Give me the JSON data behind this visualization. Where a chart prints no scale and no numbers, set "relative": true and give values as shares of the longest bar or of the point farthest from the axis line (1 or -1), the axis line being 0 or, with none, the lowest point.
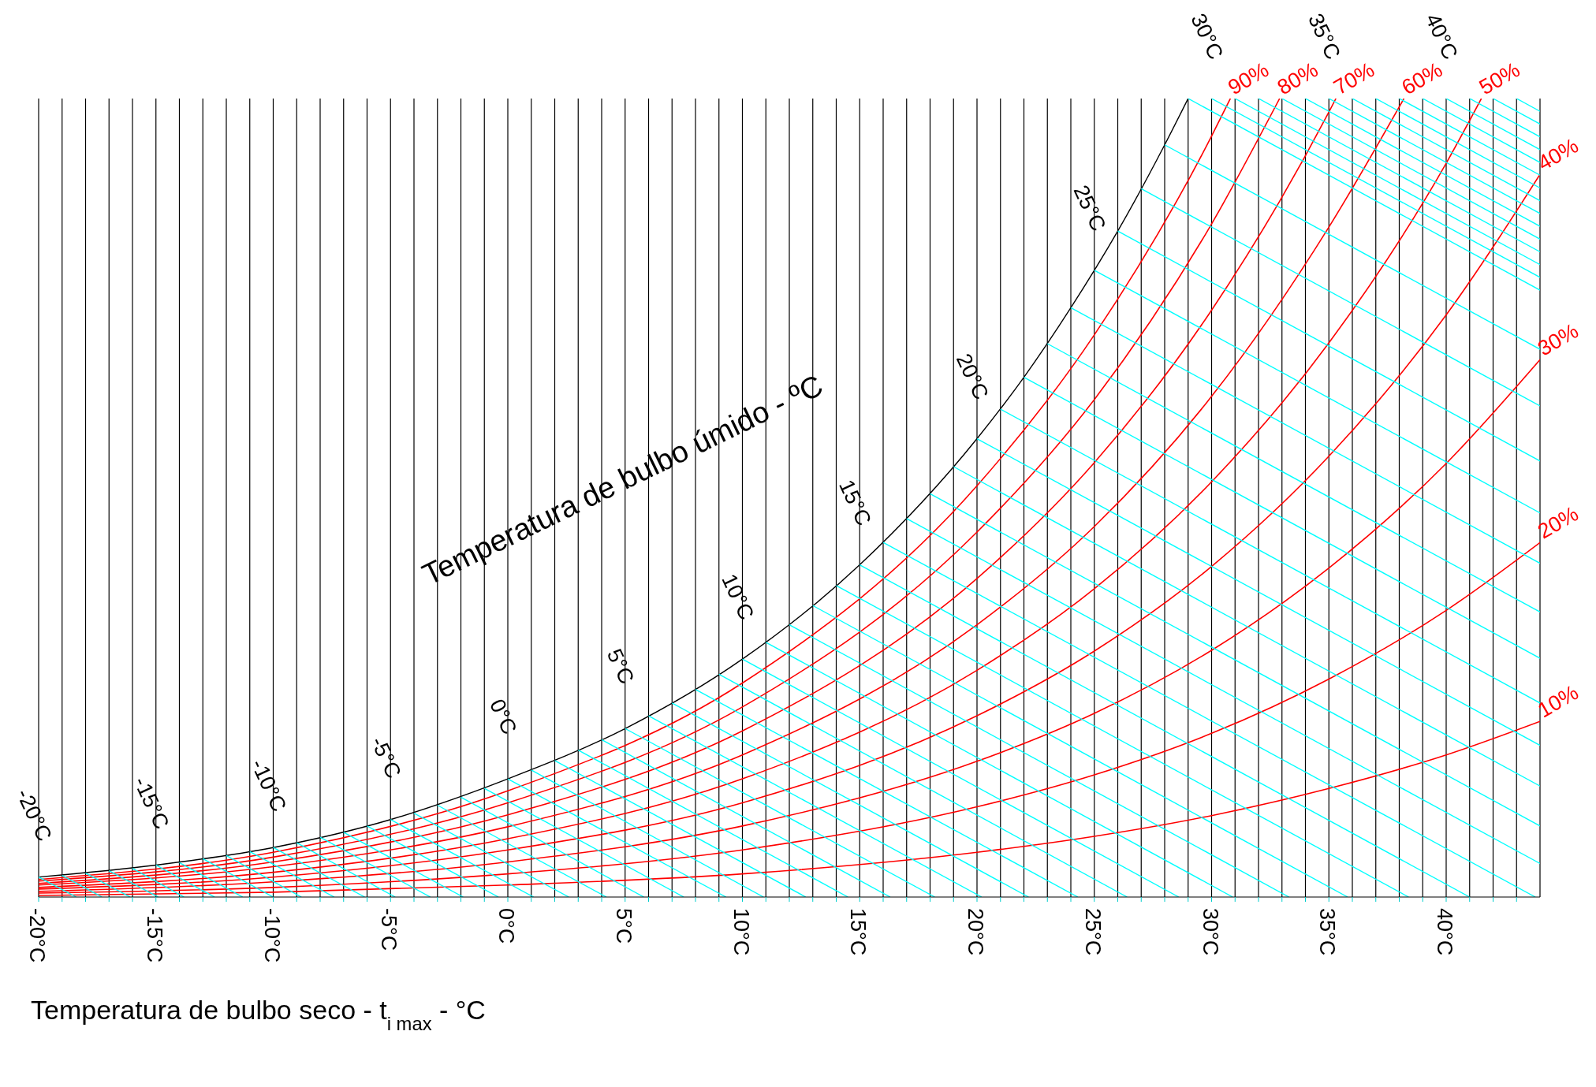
{
  "chart_data": {
    "type": "line",
    "relative": true,
    "xlabel": "Temperatura de bulbo seco - t$_{i max}$ - °C",
    "xlim": [
      -20,
      44
    ],
    "xticks": [
      {
        "value": -20,
        "label": "-20°C"
      },
      {
        "value": -19,
        "label": null
      },
      {
        "value": -18,
        "label": null
      },
      {
        "value": -17,
        "label": null
      },
      {
        "value": -16,
        "label": null
      },
      {
        "value": -15,
        "label": "-15°C"
      },
      {
        "value": -14,
        "label": null
      },
      {
        "value": -13,
        "label": null
      },
      {
        "value": -12,
        "label": null
      },
      {
        "value": -11,
        "label": null
      },
      {
        "value": -10,
        "label": "-10°C"
      },
      {
        "value": -9,
        "label": null
      },
      {
        "value": -8,
        "label": null
      },
      {
        "value": -7,
        "label": null
      },
      {
        "value": -6,
        "label": null
      },
      {
        "value": -5,
        "label": "-5°C"
      },
      {
        "value": -4,
        "label": null
      },
      {
        "value": -3,
        "label": null
      },
      {
        "value": -2,
        "label": null
      },
      {
        "value": -1,
        "label": null
      },
      {
        "value": 0,
        "label": "0°C"
      },
      {
        "value": 1,
        "label": null
      },
      {
        "value": 2,
        "label": null
      },
      {
        "value": 3,
        "label": null
      },
      {
        "value": 4,
        "label": null
      },
      {
        "value": 5,
        "label": "5°C"
      },
      {
        "value": 6,
        "label": null
      },
      {
        "value": 7,
        "label": null
      },
      {
        "value": 8,
        "label": null
      },
      {
        "value": 9,
        "label": null
      },
      {
        "value": 10,
        "label": "10°C"
      },
      {
        "value": 11,
        "label": null
      },
      {
        "value": 12,
        "label": null
      },
      {
        "value": 13,
        "label": null
      },
      {
        "value": 14,
        "label": null
      },
      {
        "value": 15,
        "label": "15°C"
      },
      {
        "value": 16,
        "label": null
      },
      {
        "value": 17,
        "label": null
      },
      {
        "value": 18,
        "label": null
      },
      {
        "value": 19,
        "label": null
      },
      {
        "value": 20,
        "label": "20°C"
      },
      {
        "value": 21,
        "label": null
      },
      {
        "value": 22,
        "label": null
      },
      {
        "value": 23,
        "label": null
      },
      {
        "value": 24,
        "label": null
      },
      {
        "value": 25,
        "label": "25°C"
      },
      {
        "value": 26,
        "label": null
      },
      {
        "value": 27,
        "label": null
      },
      {
        "value": 28,
        "label": null
      },
      {
        "value": 29,
        "label": null
      },
      {
        "value": 30,
        "label": "30°C"
      },
      {
        "value": 31,
        "label": null
      },
      {
        "value": 32,
        "label": null
      },
      {
        "value": 33,
        "label": null
      },
      {
        "value": 34,
        "label": null
      },
      {
        "value": 35,
        "label": "35°C"
      },
      {
        "value": 36,
        "label": null
      },
      {
        "value": 37,
        "label": null
      },
      {
        "value": 38,
        "label": null
      },
      {
        "value": 39,
        "label": null
      },
      {
        "value": 40,
        "label": "40°C"
      },
      {
        "value": 41,
        "label": null
      },
      {
        "value": 42,
        "label": null
      },
      {
        "value": 43,
        "label": null
      }
    ],
    "grid": "x",
    "marker": "none",
    "line_style": "solid",
    "annotations": [
      "Temperatura de bulbo úmido - ºC",
      {
        "text": "-20°C",
        "x": -20,
        "y": 0.025
      },
      {
        "text": "-15°C",
        "x": -15,
        "y": 0.04
      },
      {
        "text": "-10°C",
        "x": -10,
        "y": 0.062
      },
      {
        "text": "-5°C",
        "x": -5,
        "y": 0.097
      },
      {
        "text": "0°C",
        "x": 0,
        "y": 0.148
      },
      {
        "text": "5°C",
        "x": 5,
        "y": 0.211
      },
      {
        "text": "10°C",
        "x": 10,
        "y": 0.298
      },
      {
        "text": "15°C",
        "x": 15,
        "y": 0.416
      },
      {
        "text": "20°C",
        "x": 20,
        "y": 0.574
      },
      {
        "text": "25°C",
        "x": 25,
        "y": 0.785
      },
      {
        "text": "30°C",
        "x": 30,
        "y": 1
      },
      {
        "text": "35°C",
        "x": 35,
        "y": 1
      },
      {
        "text": "40°C",
        "x": 40,
        "y": 1
      }
    ],
    "series": [
      {
        "color": "#000000",
        "x": [
          -20,
          -15,
          -10,
          -5,
          0,
          5,
          10,
          15,
          20,
          22,
          24,
          26,
          28,
          29
        ],
        "values": [
          0.025,
          0.04,
          0.062,
          0.097,
          0.148,
          0.211,
          0.298,
          0.416,
          0.574,
          0.651,
          0.738,
          0.834,
          0.942,
          1
        ]
      },
      {
        "name": "90%",
        "color": "#ff0000",
        "x": [
          -20,
          -10,
          0,
          10,
          20,
          25,
          30,
          30.8
        ],
        "values": [
          0.022,
          0.056,
          0.133,
          0.268,
          0.515,
          0.704,
          0.953,
          1
        ]
      },
      {
        "name": "80%",
        "color": "#ff0000",
        "x": [
          -20,
          -10,
          0,
          10,
          20,
          25,
          30,
          32.9
        ],
        "values": [
          0.02,
          0.05,
          0.118,
          0.238,
          0.457,
          0.623,
          0.843,
          1
        ]
      },
      {
        "name": "70%",
        "color": "#ff0000",
        "x": [
          -20,
          -10,
          0,
          10,
          20,
          25,
          30,
          35,
          35.3
        ],
        "values": [
          0.017,
          0.044,
          0.103,
          0.208,
          0.399,
          0.544,
          0.735,
          0.983,
          1
        ]
      },
      {
        "name": "60%",
        "color": "#ff0000",
        "x": [
          -20,
          -10,
          0,
          10,
          20,
          25,
          30,
          35,
          38.2
        ],
        "values": [
          0.015,
          0.038,
          0.088,
          0.178,
          0.341,
          0.464,
          0.627,
          0.839,
          1
        ]
      },
      {
        "name": "50%",
        "color": "#ff0000",
        "x": [
          -20,
          -10,
          0,
          10,
          20,
          25,
          30,
          35,
          40,
          41.5
        ],
        "values": [
          0.012,
          0.031,
          0.073,
          0.148,
          0.284,
          0.386,
          0.52,
          0.694,
          0.919,
          1
        ]
      },
      {
        "name": "40%",
        "color": "#ff0000",
        "x": [
          -20,
          -10,
          0,
          10,
          20,
          25,
          30,
          35,
          40,
          44
        ],
        "values": [
          0.01,
          0.025,
          0.059,
          0.118,
          0.227,
          0.308,
          0.414,
          0.552,
          0.729,
          0.905
        ]
      },
      {
        "name": "30%",
        "color": "#ff0000",
        "x": [
          -20,
          -10,
          0,
          10,
          20,
          25,
          30,
          35,
          40,
          44
        ],
        "values": [
          0.007,
          0.019,
          0.044,
          0.089,
          0.17,
          0.23,
          0.309,
          0.412,
          0.543,
          0.673
        ]
      },
      {
        "name": "20%",
        "color": "#ff0000",
        "x": [
          -20,
          -10,
          0,
          10,
          20,
          25,
          30,
          35,
          40,
          44
        ],
        "values": [
          0.005,
          0.012,
          0.029,
          0.059,
          0.113,
          0.153,
          0.205,
          0.273,
          0.359,
          0.444
        ]
      },
      {
        "name": "10%",
        "color": "#ff0000",
        "x": [
          -20,
          -10,
          0,
          10,
          20,
          25,
          30,
          35,
          40,
          44
        ],
        "values": [
          0.002,
          0.006,
          0.015,
          0.029,
          0.056,
          0.076,
          0.102,
          0.136,
          0.178,
          0.22
        ]
      },
      {
        "color": "#00ffff",
        "x": [
          -20,
          -18.4
        ],
        "values": [
          0.025,
          0
        ]
      },
      {
        "color": "#00ffff",
        "x": [
          -19,
          -17.3
        ],
        "values": [
          0.027,
          0
        ]
      },
      {
        "color": "#00ffff",
        "x": [
          -18,
          -16.1
        ],
        "values": [
          0.03,
          0
        ]
      },
      {
        "color": "#00ffff",
        "x": [
          -17,
          -14.9
        ],
        "values": [
          0.033,
          0
        ]
      },
      {
        "color": "#00ffff",
        "x": [
          -16,
          -13.8
        ],
        "values": [
          0.036,
          0
        ]
      },
      {
        "color": "#00ffff",
        "x": [
          -15,
          -12.5
        ],
        "values": [
          0.04,
          0
        ]
      },
      {
        "color": "#00ffff",
        "x": [
          -14,
          -11.3
        ],
        "values": [
          0.043,
          0
        ]
      },
      {
        "color": "#00ffff",
        "x": [
          -13,
          -10
        ],
        "values": [
          0.048,
          0
        ]
      },
      {
        "color": "#00ffff",
        "x": [
          -12,
          -8.8
        ],
        "values": [
          0.052,
          0
        ]
      },
      {
        "color": "#00ffff",
        "x": [
          -11,
          -7.4
        ],
        "values": [
          0.057,
          0
        ]
      },
      {
        "color": "#00ffff",
        "x": [
          -10,
          -6.1
        ],
        "values": [
          0.062,
          0
        ]
      },
      {
        "color": "#00ffff",
        "x": [
          -9,
          -4.8
        ],
        "values": [
          0.068,
          0
        ]
      },
      {
        "color": "#00ffff",
        "x": [
          -8,
          -3.3
        ],
        "values": [
          0.075,
          0
        ]
      },
      {
        "color": "#00ffff",
        "x": [
          -7,
          -1.9
        ],
        "values": [
          0.081,
          0
        ]
      },
      {
        "color": "#00ffff",
        "x": [
          -6,
          -0.4
        ],
        "values": [
          0.089,
          0
        ]
      },
      {
        "color": "#00ffff",
        "x": [
          -5,
          1.1
        ],
        "values": [
          0.097,
          0
        ]
      },
      {
        "color": "#00ffff",
        "x": [
          -4,
          2.6
        ],
        "values": [
          0.105,
          0
        ]
      },
      {
        "color": "#00ffff",
        "x": [
          -3,
          4.2
        ],
        "values": [
          0.115,
          0
        ]
      },
      {
        "color": "#00ffff",
        "x": [
          -2,
          5.8
        ],
        "values": [
          0.125,
          0
        ]
      },
      {
        "color": "#00ffff",
        "x": [
          -1,
          7.5
        ],
        "values": [
          0.136,
          0
        ]
      },
      {
        "color": "#00ffff",
        "x": [
          0,
          9.3
        ],
        "values": [
          0.148,
          0
        ]
      },
      {
        "color": "#00ffff",
        "x": [
          1,
          10.9
        ],
        "values": [
          0.159,
          0
        ]
      },
      {
        "color": "#00ffff",
        "x": [
          2,
          12.7
        ],
        "values": [
          0.171,
          0
        ]
      },
      {
        "color": "#00ffff",
        "x": [
          3,
          14.5
        ],
        "values": [
          0.184,
          0
        ]
      },
      {
        "color": "#00ffff",
        "x": [
          4,
          16.3
        ],
        "values": [
          0.197,
          0
        ]
      },
      {
        "color": "#00ffff",
        "x": [
          5,
          18.2
        ],
        "values": [
          0.211,
          0
        ]
      },
      {
        "color": "#00ffff",
        "x": [
          6,
          20.2
        ],
        "values": [
          0.227,
          0
        ]
      },
      {
        "color": "#00ffff",
        "x": [
          7,
          22.2
        ],
        "values": [
          0.243,
          0
        ]
      },
      {
        "color": "#00ffff",
        "x": [
          8,
          24.3
        ],
        "values": [
          0.26,
          0
        ]
      },
      {
        "color": "#00ffff",
        "x": [
          9,
          26.4
        ],
        "values": [
          0.279,
          0
        ]
      },
      {
        "color": "#00ffff",
        "x": [
          10,
          28.6
        ],
        "values": [
          0.298,
          0
        ]
      },
      {
        "color": "#00ffff",
        "x": [
          11,
          30.9
        ],
        "values": [
          0.319,
          0
        ]
      },
      {
        "color": "#00ffff",
        "x": [
          12,
          33.3
        ],
        "values": [
          0.341,
          0
        ]
      },
      {
        "color": "#00ffff",
        "x": [
          13,
          35.8
        ],
        "values": [
          0.365,
          0
        ]
      },
      {
        "color": "#00ffff",
        "x": [
          14,
          38.4
        ],
        "values": [
          0.39,
          0
        ]
      },
      {
        "color": "#00ffff",
        "x": [
          15,
          41
        ],
        "values": [
          0.416,
          0
        ]
      },
      {
        "color": "#00ffff",
        "x": [
          16,
          43.8
        ],
        "values": [
          0.444,
          0
        ]
      },
      {
        "color": "#00ffff",
        "x": [
          17,
          44
        ],
        "values": [
          0.474,
          0.042
        ]
      },
      {
        "color": "#00ffff",
        "x": [
          18,
          44
        ],
        "values": [
          0.505,
          0.089
        ]
      },
      {
        "color": "#00ffff",
        "x": [
          19,
          44
        ],
        "values": [
          0.539,
          0.139
        ]
      },
      {
        "color": "#00ffff",
        "x": [
          20,
          44
        ],
        "values": [
          0.574,
          0.19
        ]
      },
      {
        "color": "#00ffff",
        "x": [
          21,
          44
        ],
        "values": [
          0.611,
          0.243
        ]
      },
      {
        "color": "#00ffff",
        "x": [
          22,
          44
        ],
        "values": [
          0.651,
          0.299
        ]
      },
      {
        "color": "#00ffff",
        "x": [
          23,
          44
        ],
        "values": [
          0.693,
          0.357
        ]
      },
      {
        "color": "#00ffff",
        "x": [
          24,
          44
        ],
        "values": [
          0.738,
          0.418
        ]
      },
      {
        "color": "#00ffff",
        "x": [
          25,
          44
        ],
        "values": [
          0.785,
          0.481
        ]
      },
      {
        "color": "#00ffff",
        "x": [
          26,
          44
        ],
        "values": [
          0.834,
          0.546
        ]
      },
      {
        "color": "#00ffff",
        "x": [
          27,
          44
        ],
        "values": [
          0.887,
          0.615
        ]
      },
      {
        "color": "#00ffff",
        "x": [
          28,
          44
        ],
        "values": [
          0.942,
          0.686
        ]
      },
      {
        "color": "#00ffff",
        "x": [
          29,
          44
        ],
        "values": [
          1,
          0.76
        ]
      },
      {
        "color": "#00ffff",
        "x": [
          30,
          44
        ],
        "values": [
          1,
          0.776
        ]
      },
      {
        "color": "#00ffff",
        "x": [
          31,
          44
        ],
        "values": [
          1,
          0.792
        ]
      },
      {
        "color": "#00ffff",
        "x": [
          32,
          44
        ],
        "values": [
          1,
          0.808
        ]
      },
      {
        "color": "#00ffff",
        "x": [
          33,
          44
        ],
        "values": [
          1,
          0.824
        ]
      },
      {
        "color": "#00ffff",
        "x": [
          34,
          44
        ],
        "values": [
          1,
          0.84
        ]
      },
      {
        "color": "#00ffff",
        "x": [
          35,
          44
        ],
        "values": [
          1,
          0.856
        ]
      },
      {
        "color": "#00ffff",
        "x": [
          36,
          44
        ],
        "values": [
          1,
          0.872
        ]
      },
      {
        "color": "#00ffff",
        "x": [
          37,
          44
        ],
        "values": [
          1,
          0.888
        ]
      },
      {
        "color": "#00ffff",
        "x": [
          38,
          44
        ],
        "values": [
          1,
          0.904
        ]
      },
      {
        "color": "#00ffff",
        "x": [
          39,
          44
        ],
        "values": [
          1,
          0.92
        ]
      },
      {
        "color": "#00ffff",
        "x": [
          40,
          44
        ],
        "values": [
          1,
          0.936
        ]
      },
      {
        "color": "#00ffff",
        "x": [
          41,
          44
        ],
        "values": [
          1,
          0.952
        ]
      },
      {
        "color": "#00ffff",
        "x": [
          42,
          44
        ],
        "values": [
          1,
          0.968
        ]
      },
      {
        "color": "#00ffff",
        "x": [
          43,
          44
        ],
        "values": [
          1,
          0.984
        ]
      }
    ]
  }
}
